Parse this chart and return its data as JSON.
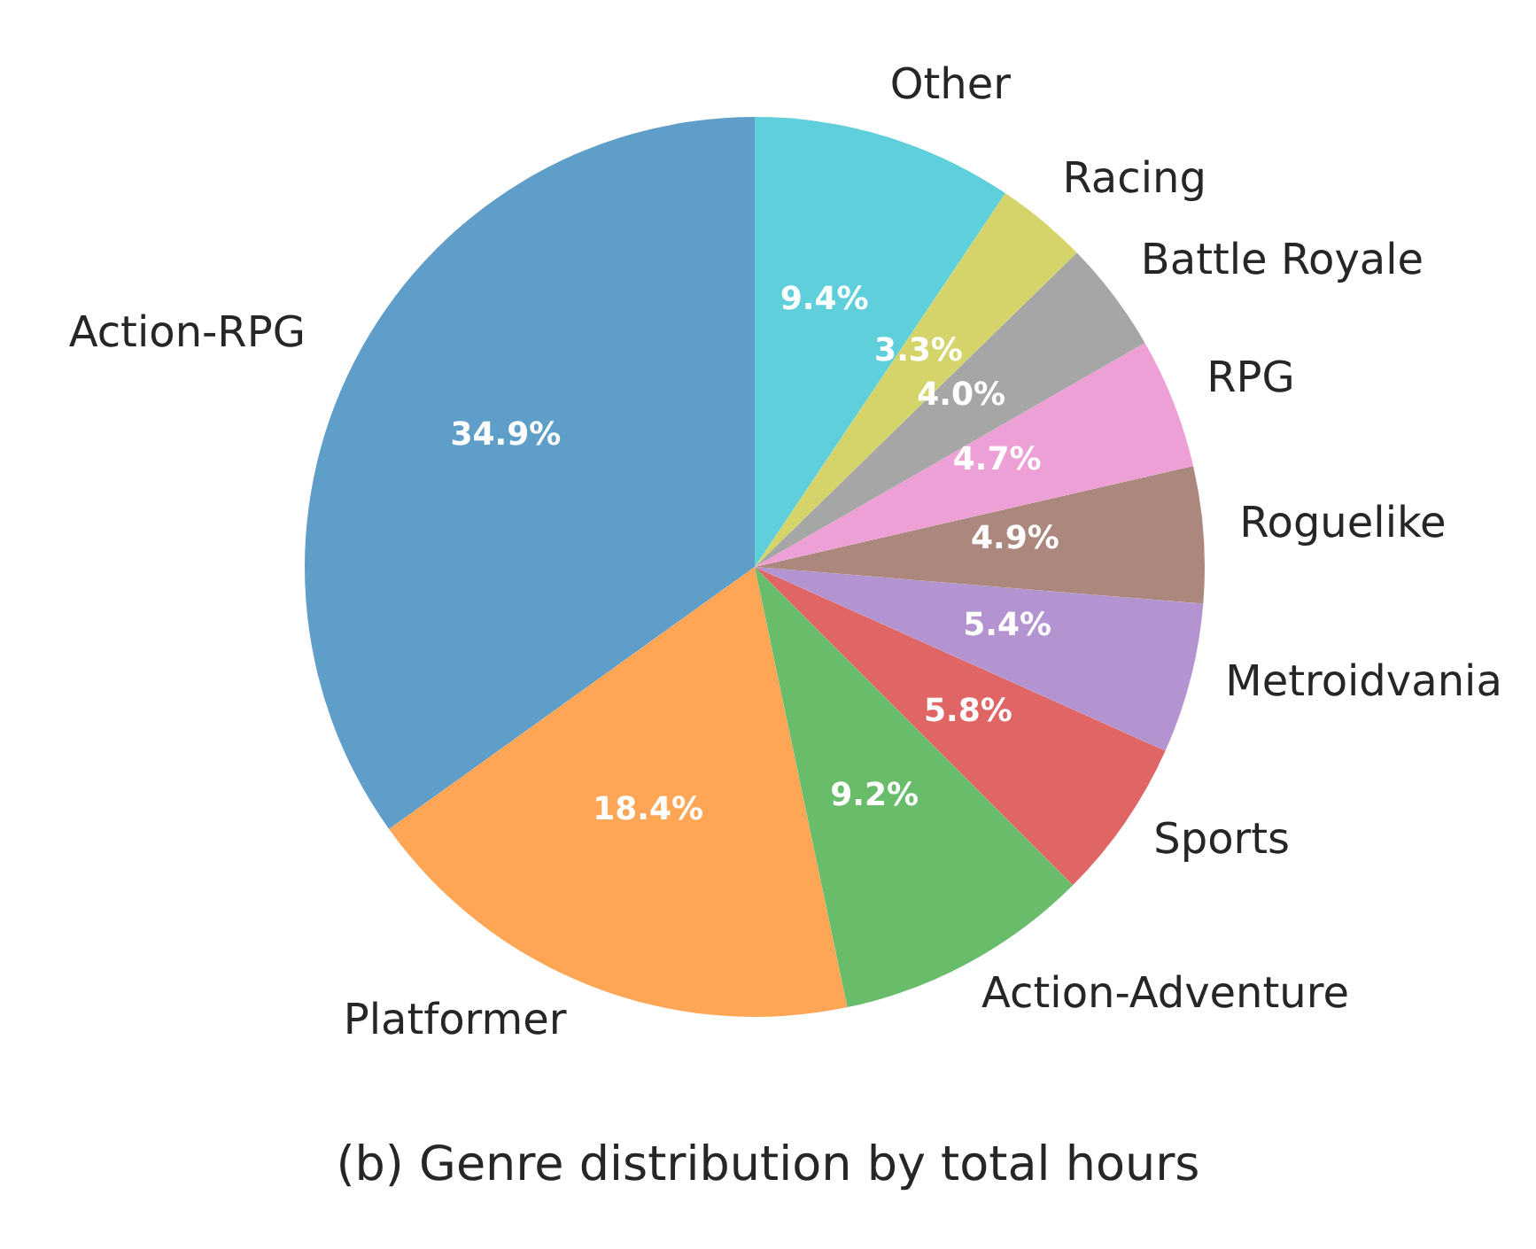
{
  "chart_data": {
    "type": "pie",
    "title": "(b) Genre distribution by total hours",
    "categories": [
      "Action-RPG",
      "Platformer",
      "Action-Adventure",
      "Sports",
      "Metroidvania",
      "Roguelike",
      "RPG",
      "Battle Royale",
      "Racing",
      "Other"
    ],
    "values": [
      34.9,
      18.4,
      9.2,
      5.8,
      5.4,
      4.9,
      4.7,
      4.0,
      3.3,
      9.4
    ],
    "colors": [
      "#5f9ec9",
      "#ffa556",
      "#69bd6a",
      "#e06666",
      "#b394d1",
      "#ab877e",
      "#eca0d6",
      "#a6a6a6",
      "#d4d46a",
      "#5fcfdc"
    ],
    "value_labels": [
      "34.9%",
      "18.4%",
      "9.2%",
      "5.8%",
      "5.4%",
      "4.9%",
      "4.7%",
      "4.0%",
      "3.3%",
      "9.4%"
    ],
    "legend": false
  }
}
